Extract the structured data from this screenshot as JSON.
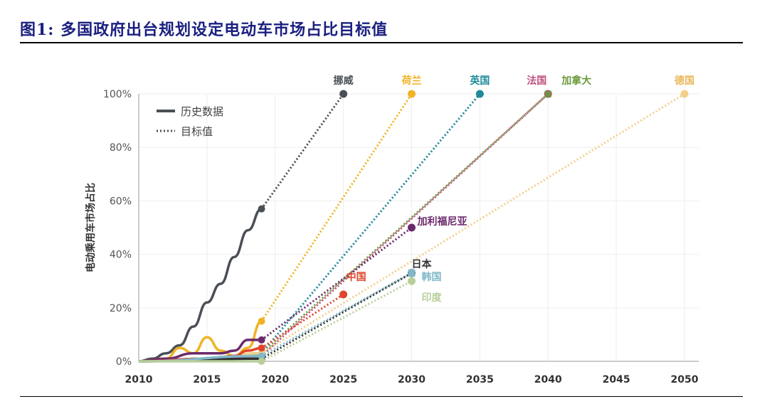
{
  "title": "图1:  多国政府出台规划设定电动车市场占比目标值",
  "chart_data": {
    "type": "line",
    "title": "",
    "xlabel": "",
    "ylabel": "电动乘用车市场占比",
    "xlim": [
      2010,
      2050
    ],
    "ylim": [
      0,
      100
    ],
    "xticks": [
      "2010",
      "2015",
      "2020",
      "2025",
      "2030",
      "2035",
      "2040",
      "2045",
      "2050"
    ],
    "yticks": [
      "0%",
      "20%",
      "40%",
      "60%",
      "80%",
      "100%"
    ],
    "grid": true,
    "legend": {
      "position": "top-left",
      "entries": [
        {
          "label": "历史数据",
          "style": "solid"
        },
        {
          "label": "目标值",
          "style": "dotted"
        }
      ]
    },
    "series": [
      {
        "name": "挪威",
        "color": "#4a4f55",
        "history": [
          [
            2010,
            0
          ],
          [
            2011,
            1
          ],
          [
            2012,
            3
          ],
          [
            2013,
            6
          ],
          [
            2014,
            13
          ],
          [
            2015,
            22
          ],
          [
            2016,
            29
          ],
          [
            2017,
            39
          ],
          [
            2018,
            49
          ],
          [
            2019,
            57
          ]
        ],
        "target": [
          2025,
          100
        ]
      },
      {
        "name": "荷兰",
        "color": "#f0b323",
        "history": [
          [
            2010,
            0
          ],
          [
            2012,
            1
          ],
          [
            2013,
            5
          ],
          [
            2014,
            3
          ],
          [
            2015,
            9
          ],
          [
            2016,
            4
          ],
          [
            2017,
            2
          ],
          [
            2018,
            5
          ],
          [
            2019,
            15
          ]
        ],
        "target": [
          2030,
          100
        ]
      },
      {
        "name": "英国",
        "color": "#1e8a9a",
        "history": [
          [
            2010,
            0
          ],
          [
            2015,
            1
          ],
          [
            2018,
            2
          ],
          [
            2019,
            3
          ]
        ],
        "target": [
          2035,
          100
        ]
      },
      {
        "name": "法国",
        "color": "#c0507d",
        "history": [
          [
            2010,
            0
          ],
          [
            2015,
            1
          ],
          [
            2019,
            2
          ]
        ],
        "target": [
          2040,
          100
        ]
      },
      {
        "name": "加拿大",
        "color": "#6b9a3a",
        "history": [
          [
            2010,
            0
          ],
          [
            2015,
            1
          ],
          [
            2019,
            3
          ]
        ],
        "target": [
          2040,
          100
        ]
      },
      {
        "name": "德国",
        "color": "#f2d08a",
        "history": [
          [
            2010,
            0
          ],
          [
            2015,
            1
          ],
          [
            2019,
            3
          ]
        ],
        "target": [
          2050,
          100
        ]
      },
      {
        "name": "加利福尼亚",
        "color": "#6b2a6b",
        "history": [
          [
            2010,
            0
          ],
          [
            2012,
            1
          ],
          [
            2014,
            3
          ],
          [
            2016,
            3
          ],
          [
            2017,
            4
          ],
          [
            2018,
            8
          ],
          [
            2019,
            8
          ]
        ],
        "target": [
          2030,
          50
        ]
      },
      {
        "name": "中国",
        "color": "#e0452b",
        "history": [
          [
            2010,
            0
          ],
          [
            2015,
            1
          ],
          [
            2017,
            2
          ],
          [
            2018,
            4
          ],
          [
            2019,
            5
          ]
        ],
        "target": [
          2025,
          25
        ]
      },
      {
        "name": "日本",
        "color": "#333333",
        "history": [
          [
            2010,
            0
          ],
          [
            2019,
            1
          ]
        ],
        "target": [
          2030,
          33
        ]
      },
      {
        "name": "韩国",
        "color": "#7fb8c8",
        "history": [
          [
            2010,
            0
          ],
          [
            2019,
            2
          ]
        ],
        "target": [
          2030,
          33
        ]
      },
      {
        "name": "印度",
        "color": "#b9cf9b",
        "history": [
          [
            2010,
            0
          ],
          [
            2019,
            0
          ]
        ],
        "target": [
          2030,
          30
        ]
      }
    ]
  }
}
